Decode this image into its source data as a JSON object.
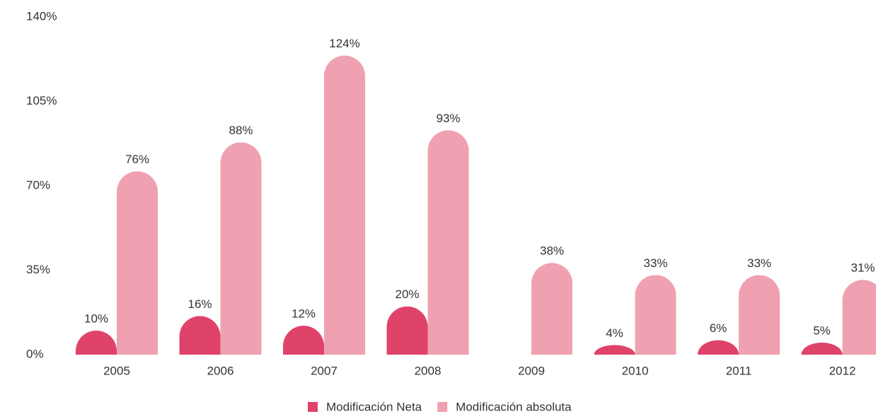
{
  "chart_data": {
    "type": "bar",
    "categories": [
      "2005",
      "2006",
      "2007",
      "2008",
      "2009",
      "2010",
      "2011",
      "2012"
    ],
    "series": [
      {
        "name": "Modificación Neta",
        "color": "#e0436a",
        "values": [
          10,
          16,
          12,
          20,
          null,
          4,
          6,
          5
        ],
        "value_labels": [
          "10%",
          "16%",
          "12%",
          "20%",
          null,
          "4%",
          "6%",
          "5%"
        ]
      },
      {
        "name": "Modificación absoluta",
        "color": "#f0a1b1",
        "values": [
          76,
          88,
          124,
          93,
          38,
          33,
          33,
          31
        ],
        "value_labels": [
          "76%",
          "88%",
          "124%",
          "93%",
          "38%",
          "33%",
          "33%",
          "31%"
        ]
      }
    ],
    "ylim": [
      0,
      140
    ],
    "yticks": [
      {
        "value": 0,
        "label": "0%"
      },
      {
        "value": 35,
        "label": "35%"
      },
      {
        "value": 70,
        "label": "70%"
      },
      {
        "value": 105,
        "label": "105%"
      },
      {
        "value": 140,
        "label": "140%"
      }
    ],
    "grid": false,
    "legend": "bottom"
  }
}
